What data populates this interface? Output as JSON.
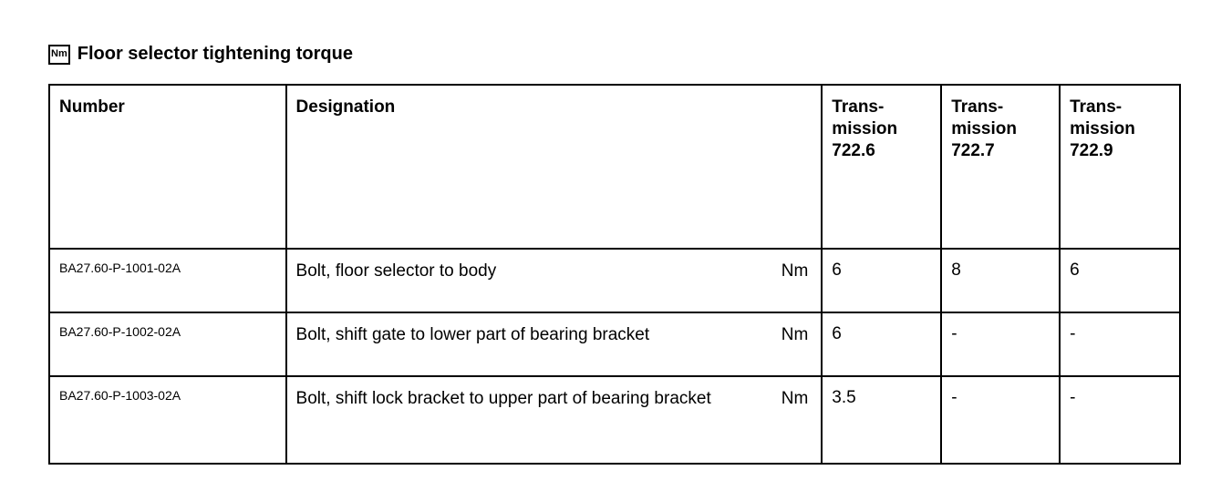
{
  "title": "Floor selector tightening torque",
  "title_icon": "Nm",
  "headers": {
    "number": "Number",
    "designation": "Designation",
    "t1": "Trans-\nmission\n722.6",
    "t2": "Trans-\nmission\n722.7",
    "t3": "Trans-\nmission\n722.9"
  },
  "rows": [
    {
      "number": "BA27.60-P-1001-02A",
      "designation": "Bolt, floor selector to body",
      "unit": "Nm",
      "v1": "6",
      "v2": "8",
      "v3": "6"
    },
    {
      "number": "BA27.60-P-1002-02A",
      "designation": "Bolt, shift gate to lower part of bearing bracket",
      "unit": "Nm",
      "v1": "6",
      "v2": "-",
      "v3": "-"
    },
    {
      "number": "BA27.60-P-1003-02A",
      "designation": "Bolt, shift lock bracket to upper part of bearing bracket",
      "unit": "Nm",
      "v1": "3.5",
      "v2": "-",
      "v3": "-"
    }
  ]
}
